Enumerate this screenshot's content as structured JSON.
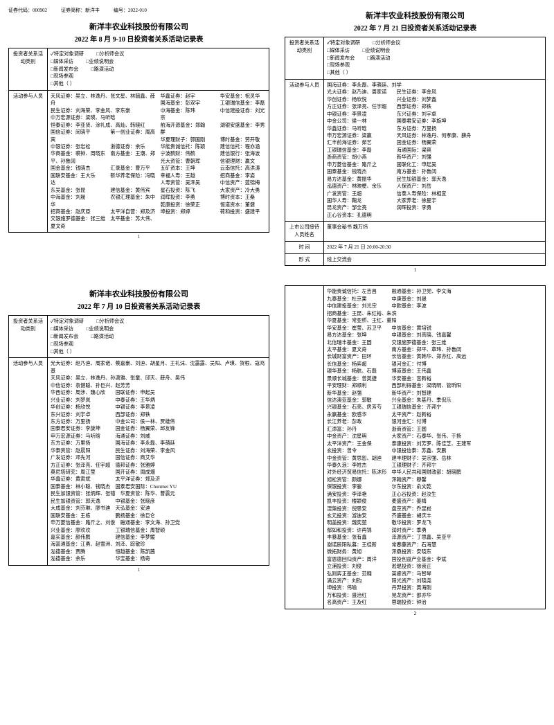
{
  "meta": {
    "code_label": "证券代码：",
    "code": "000902",
    "short_label": "证券简称：",
    "short": "新洋丰",
    "no_label": "编号：",
    "no": "2022-010"
  },
  "company": "新洋丰农业科技股份有限公司",
  "labels": {
    "activity_type": "投资者关系活动类别",
    "participants": "活动参与人员",
    "host": "上市公司接待人员姓名",
    "time": "时    间",
    "form": "形    式"
  },
  "opts": {
    "survey": "✓特定对象调研",
    "analyst": "□分析师会议",
    "media": "□媒体采访",
    "perf": "□业绩说明会",
    "press": "□新闻发布会",
    "road": "□路演活动",
    "site": "□现场参观",
    "other": "□其他（                    ）"
  },
  "doc1": {
    "subtitle": "2022 年 8 月 9-10 日投资者关系活动记录表",
    "ppl": [
      "天风证券：吴立、林逸丹、张文星、林毓鑫、薛舟",
      "民生证券：刘海荣、李金风、李东豪",
      "中万宏源证券：梁瑛、马听晗",
      "恒泰证券：李亚贤、涂礼成、高灿、韩晓红",
      "国信证券：闵晓平　　　　第一创业证券：周高宾",
      "中银证券：张岩松　　　　浙德证券：余乐",
      "华商基金：裘钟、周晓东　南方基金：王潮、郑平、孙鲁阔",
      "国金基金：钱晓杰　　　　汇录基金：曹万平",
      "国联安基金：王大乐　　　新华养老保险：冯晓达",
      "东吴基金：张昆　　　　　建信基金：黄伟宾",
      "中海基金：刘晟　　　　　农银汇理基金：朱中华",
      "招商基金：赵庆原　　　　太平洋自营：郑及济",
      "交银施罗德基金：张三维　太平基金：苏大伟、夏文奇",
      "华鑫证券：赵宇　　　　　华安基金：祝灵华",
      "国海基金：彭双宇　　　　工银瑞信基金：李磊",
      "中海基金：陈玮　　　　　中信建投证券：刘光宗",
      "前海开源基金：郑翰　　　湖银安盛基金：李秀群",
      "华夏理财子：郭国刚　　　博时基金：劳开敬",
      "华能贵诚信托：陈颖　　　建信信托：程亦涵",
      "宁波鹤财：伟鹤　　　　　建信银行：张海波",
      "光大资管：曹朝珲　　　　信银理财：赢文",
      "五矿资本：王坤　　　　　云南信托：高洪涛",
      "幸福人寿：王越　　　　　招商基金：李姿",
      "人寿资管：吴泽吴　　　　中信资产：蓝锦梅",
      "星石投资：陈飞　　　　　大家资产：冷大勇",
      "润晖投资：李勇　　　　　博时资本：王桑",
      "乾康投资：徐荣正　　　　恒道资本：董健",
      "坤投资：郑婷　　　　　　荷和投资：盛建平"
    ],
    "page": "1"
  },
  "doc2": {
    "subtitle": "2022 年 7 月 21 日投资者关系活动记录表",
    "ppl": [
      "国海证券：李永磊、李萌廷、刘学",
      "光大证券：赵乃迪、周家诺　　民生证券：李金风",
      "华创证券：杨欣悦　　　　　　兴业证券：刘梦鑫",
      "方正证券：张泽亮、任宇超　　西部证券：郑铁",
      "中银证券：李景凌　　　　　　东兴证券：刘宇卓",
      "中金公司：侯一林　　　　　　国泰君安证券：李旋坤",
      "华鑫证券：马听晗　　　　　　东方证券：万里扬",
      "申万宏源证券：梁赢　　　　　天风证券：林逸丹、何孝康、薛舟",
      "汇丰前海证券：茹艺　　　　　国金证券：杨翼荣",
      "工银瑞信基金：李磊　　　　　海通国际：梁爽",
      "浙商资管：胡小燕　　　　　　新华资产：刘强",
      "申万菱信基金：路斤之　　　　国联化工：申起吴",
      "国泰基金：钱晓杰　　　　　　南方基金：孙鲁阔",
      "易方达基金：黄振华　　　　　民生加银基金：郭天逸",
      "泓德资产：林映梗、余乐　　　人保资产：刘岳",
      "广发资管：王超　　　　　　　信泰人寿保险：林相宜",
      "国华人寿：鞠龙　　　　　　　大家养老：徐星宇",
      "昆龙资产：邹全亮　　　　　　润晖投资：李勇",
      "正心谷资本：孔德明"
    ],
    "host": "董事会秘书  魏万炜",
    "time": "2022 年 7 月 21 日 20:00-20:30",
    "form": "线上交流会",
    "page": "1"
  },
  "doc3": {
    "subtitle": "2022 年 7 月 10 日投资者关系活动记录表",
    "ppl": [
      "光大证券：赵乃迪、周家诺、蔡嘉豪、刘迪、胡星月、王礼沫、沈露露、吴阳、卢琪、贺根、寇鸿基",
      "天风证券：吴立、林逸丹、孙潇雅、张童、邱天、薛舟、吴伟",
      "中信证券：袁健聪、孙巨兴、赵芳芳",
      "华西证券：周涉、魏心欣　　国联证券：申起吴",
      "兴业证券：刘梦岚　　　　　中泰证券：王华炳",
      "华创证券：杨欣悦　　　　　中银证券：李景凌",
      "东兴证券：刘宇卓　　　　　西部证券：郑铁",
      "东方证券：万里扬　　　　　中金公司：侯一林、贾雄伟",
      "国泰君安证券：李旋坤　　　国金证券：杨翼荣、邱友锋",
      "申万宏源证券：马听晗　　　海通证券：刘威",
      "东方证券：万里扬　　　　　国海证券：李永磊、李萌廷",
      "华泰资管：赵晨阳　　　　　民生证券：刘海荣、李金风",
      "广发证券：邓先河　　　　　国信证券：商艾华",
      "方正证券：张泽亮、任宇超　德邦证券：张雅婷",
      "莫尼塔研究：周江莹　　　　国开证券：周成畑",
      "华鑫证券：黄寅斌　　　　　太平洋证券：郑及济",
      "国泰基金：林小聪、钱晓杰　国泰君安国际：Chunmei YU",
      "民生加银资管：张炳辉、张镱　华夏资管：陈华、曹震元",
      "民生加银资管：郭天逸　　　中银基金：张晓彦",
      "大成基金：刘芬琳、廖书迪　天弘基金：安迪",
      "国联安基金：王栋　　　　　鹏扬基金：徐巨仑",
      "申万菱信基金：路斤之、刘俊　融通基金：李文海、孙卫党",
      "兴业基金：廖欢欢　　　　　工银瑞信基金：周智硕",
      "嘉实基金：颜伟鹏　　　　　建信基金：李梦媛",
      "海富通基金：江勇、赵雪洲、刘泽、踪敬珍",
      "泓德基金：贾腾　　　　　　恒越基金：陈凯茜",
      "泓德基金：余乐　　　　　　华宝基金：杨奇"
    ],
    "page": "1"
  },
  "doc4": {
    "ppl": [
      "华能贵诚信托：左吉昌　　　融通基金：孙卫党、李文海",
      "九泰基金：杜京果　　　　　中庚基金：刘晟",
      "中信建投基金：刘光宗　　　中欧基金：李波",
      "招商基金：王昆、朱红裕、朱滨",
      "华夏基金：常亚桥、王红、董阳",
      "华安基金：崔莹、苏卫平　　中信基金：黄培锐",
      "易方达基金：张坤　　　　　中银基金：刘高晓、钱嘉馨",
      "北信瑞丰基金：王圆　　　　交银施罗德基金：张三维",
      "太平基金：夏文奇　　　　　南方基金：郑平、章玮、孙鲁阔",
      "长城财富资产：田环　　　　长信基金：黄韩华、郑亦红、高远",
      "长信基金：杨弈超　　　　　银河金汇：付博",
      "银华基金：杨航、石磊　　　博道基金：王伟鑫",
      "景顺长城基金：曾英捷　　　华安基金：宫新裕",
      "平安理财：郑顺利　　　　　西部利得基金：梁晓明、管昕阳",
      "新华基金：赵强　　　　　　新华资产：刘智建",
      "信达澳亚基金：郭敏　　　　兴全基金：朱甚丹、季侃乐",
      "兴银基金：石亮、房芳芍　　工银瑞信基金：齐邦宁",
      "永赢基金：欧感华　　　　　太平资产：赵新裕",
      "长江养老：彭政　　　　　　银河金汇：付博",
      "汇添富：孙丹　　　　　　　浙商资管：王圆",
      "中金资产：沈星明　　　　　大家资产：石泰华、张伟、于扬",
      "太平洋资产：王金保　　　　泰康投资：刘芳罗、陈佳芝、王建军",
      "玄投资：曾令　　　　　　　中银投信泰：苏鑫、安鹏",
      "中金资管：黄思恕、胡迪　　建丰理财子：吴宗强、岳林",
      "华泰久浪：李姓杰　　　　　工银理财子：齐邦宁",
      "对外经济贸易信托：陈沐形　中华人民共和国财政部：胡晓鹏",
      "旭松资管：颜娜　　　　　　泽翰资产：穆馨",
      "保银投资：李骏　　　　　　尔东投资：俞文乾",
      "涌安投资：李泽艳　　　　　正心谷投资：赵汝生",
      "凯丰投资：楼颖俊　　　　　麦盛资产：姜梅",
      "涅槃投资：倪思安　　　　　盘京资产：乔昱崧",
      "玄元投资：游迪安　　　　　齐盛基金：胡庆丰",
      "明盖投资：魏奕堃　　　　　敬华投资：罗龙飞",
      "鄢如和投资：许再锦　　　　润时资产：季勇",
      "丰暴基金：张有鑫　　　　　泽源资产：丁思鑫、吴亚平",
      "谢诺辰阳私募：王桂新　　　常春藤资产：石海慧",
      "微拓财务：黄旭　　　　　　泽鼎投资：安晓东",
      "富恩德回归资产：周洋　　　国投创益产业基金：李斌",
      "立浦投资：刘俊　　　　　　淞琨投资：徐崇正",
      "弘则弈正基金：范翱　　　　英睿资产：马智琴",
      "涌云资产：刘钧　　　　　　阳光资产：刘晓尧",
      "坤投资：伟喻　　　　　　　丹羿投资：黄海刚",
      "万和投资：盛治红　　　　　晃龙资产：邵亦华",
      "名高资产：王及红　　　　　蓉瑞投资：钟治"
    ],
    "page": "2"
  }
}
